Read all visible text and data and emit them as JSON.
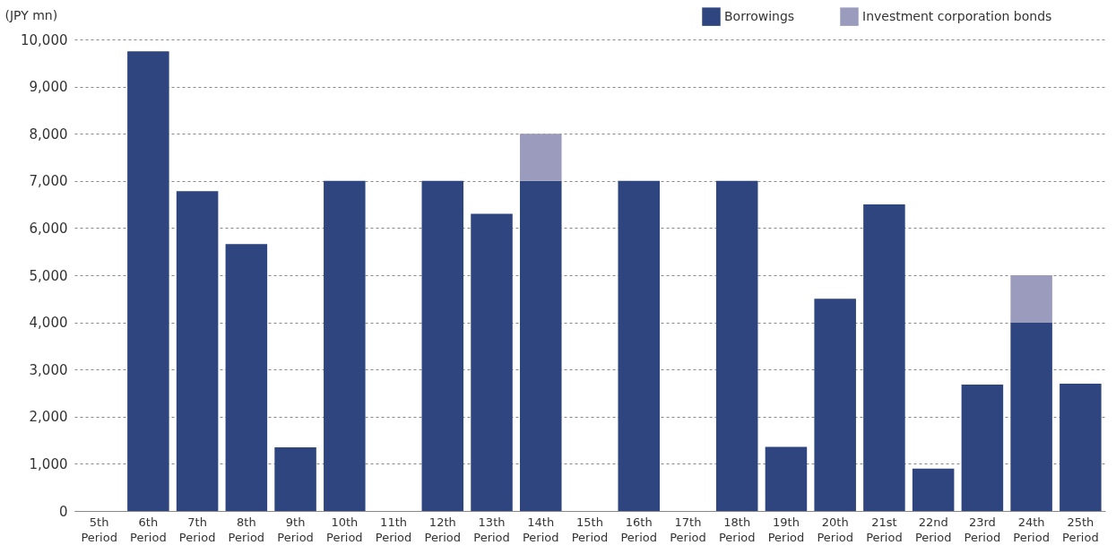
{
  "chart_data": {
    "type": "bar",
    "ylabel": "(JPY mn)",
    "stacked": true,
    "legend": "top right",
    "grid": "y",
    "categories": [
      "5th Period",
      "6th Period",
      "7th Period",
      "8th Period",
      "9th Period",
      "10th Period",
      "11th Period",
      "12th Period",
      "13th Period",
      "14th Period",
      "15th Period",
      "16th Period",
      "17th Period",
      "18th Period",
      "19th Period",
      "20th Period",
      "21st Period",
      "22nd Period",
      "23rd Period",
      "24th Period",
      "25th Period"
    ],
    "series": [
      {
        "name": "Borrowings",
        "color": "#2e4580",
        "values": [
          0,
          9750,
          6780,
          5660,
          1350,
          7000,
          0,
          7000,
          6300,
          7000,
          0,
          7000,
          0,
          7000,
          1360,
          4500,
          6500,
          900,
          2680,
          4000,
          2700
        ]
      },
      {
        "name": "Investment corporation bonds",
        "color": "#9a9bbd",
        "values": [
          0,
          0,
          0,
          0,
          0,
          0,
          0,
          0,
          0,
          1000,
          0,
          0,
          0,
          0,
          0,
          0,
          0,
          0,
          0,
          1000,
          0
        ]
      }
    ],
    "ylim": [
      0,
      10000
    ],
    "yticks": [
      0,
      {
        "value": 1000,
        "label": "1,000"
      },
      {
        "value": 2000,
        "label": "2,000"
      },
      {
        "value": 3000,
        "label": "3,000"
      },
      {
        "value": 4000,
        "label": "4,000"
      },
      {
        "value": 5000,
        "label": "5,000"
      },
      {
        "value": 6000,
        "label": "6,000"
      },
      {
        "value": 7000,
        "label": "7,000"
      },
      {
        "value": 8000,
        "label": "8,000"
      },
      {
        "value": 9000,
        "label": "9,000"
      },
      {
        "value": 10000,
        "label": "10,000"
      }
    ]
  }
}
